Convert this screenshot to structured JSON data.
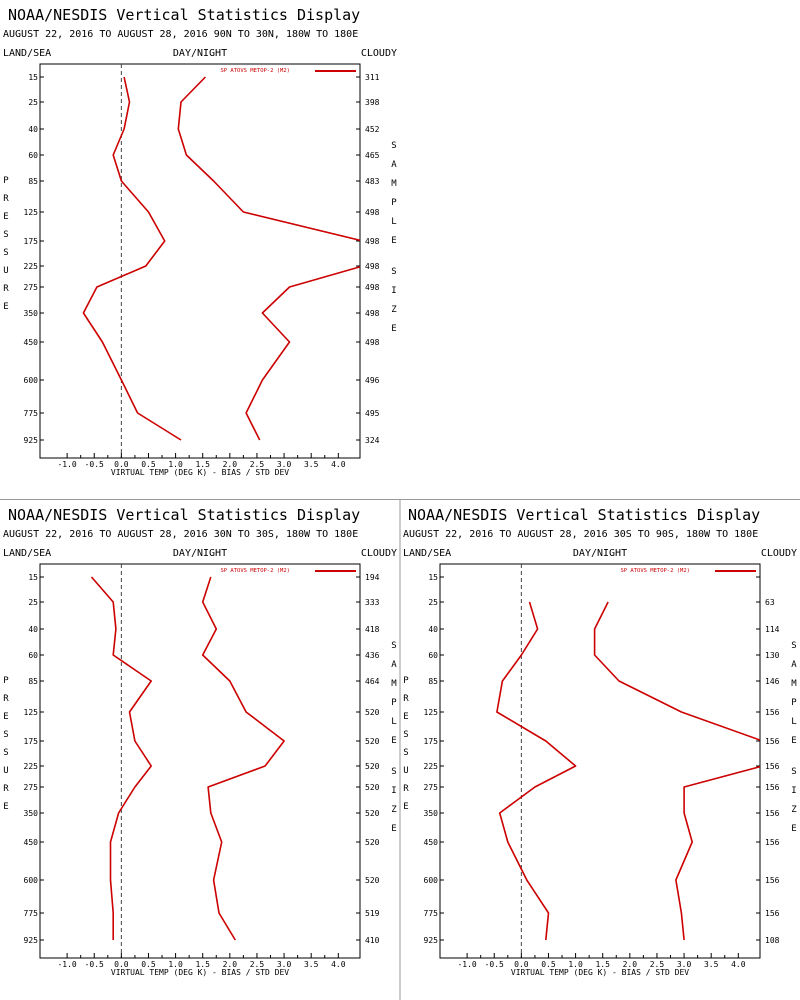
{
  "colors": {
    "series": "#cc0000",
    "frame": "#000000",
    "divider": "#999999",
    "zero_line": "#444444"
  },
  "labels": {
    "land_sea": "LAND/SEA",
    "day_night": "DAY/NIGHT",
    "cloudy": "CLOUDY",
    "y_axis_letters": "PRESSURE",
    "right_axis_top": "SAMPLE",
    "right_axis_bottom": "SIZE"
  },
  "chart_data": [
    {
      "type": "line",
      "title": "NOAA/NESDIS Vertical Statistics Display",
      "subtitle": "AUGUST 22, 2016 TO AUGUST 28, 2016 90N TO 30N, 180W TO 180E",
      "xlabel": "VIRTUAL TEMP (DEG K) - BIAS / STD DEV",
      "ylabel": "PRESSURE",
      "xlim": [
        -1.5,
        4.4
      ],
      "x_ticks": [
        "-1.0",
        "-0.5",
        "0.0",
        "0.5",
        "1.0",
        "1.5",
        "2.0",
        "2.5",
        "3.0",
        "3.5",
        "4.0"
      ],
      "pressure_levels": [
        "15",
        "25",
        "40",
        "60",
        "85",
        "125",
        "175",
        "225",
        "275",
        "350",
        "450",
        "600",
        "775",
        "925"
      ],
      "sample_size": [
        "311",
        "398",
        "452",
        "465",
        "483",
        "498",
        "498",
        "498",
        "498",
        "498",
        "498",
        "496",
        "495",
        "324"
      ],
      "legend": "SP ATOVS METOP-2 (M2)",
      "series": [
        {
          "role": "bias",
          "values": [
            0.05,
            0.15,
            0.05,
            -0.15,
            0.0,
            0.5,
            0.8,
            0.45,
            -0.45,
            -0.7,
            -0.35,
            0.0,
            0.3,
            1.1
          ]
        },
        {
          "role": "std_dev",
          "values": [
            1.55,
            1.1,
            1.05,
            1.2,
            1.7,
            2.25,
            4.45,
            4.45,
            3.1,
            2.6,
            3.1,
            2.6,
            2.3,
            2.55
          ]
        }
      ]
    },
    {
      "type": "line",
      "title": "NOAA/NESDIS Vertical Statistics Display",
      "subtitle": "AUGUST 22, 2016 TO AUGUST 28, 2016 30N TO 30S, 180W TO 180E",
      "xlabel": "VIRTUAL TEMP (DEG K) - BIAS / STD DEV",
      "ylabel": "PRESSURE",
      "xlim": [
        -1.5,
        4.4
      ],
      "x_ticks": [
        "-1.0",
        "-0.5",
        "0.0",
        "0.5",
        "1.0",
        "1.5",
        "2.0",
        "2.5",
        "3.0",
        "3.5",
        "4.0"
      ],
      "pressure_levels": [
        "15",
        "25",
        "40",
        "60",
        "85",
        "125",
        "175",
        "225",
        "275",
        "350",
        "450",
        "600",
        "775",
        "925"
      ],
      "sample_size": [
        "194",
        "333",
        "418",
        "436",
        "464",
        "520",
        "520",
        "520",
        "520",
        "520",
        "520",
        "520",
        "519",
        "410"
      ],
      "legend": "SP ATOVS METOP-2 (M2)",
      "series": [
        {
          "role": "bias",
          "values": [
            -0.55,
            -0.15,
            -0.1,
            -0.15,
            0.55,
            0.15,
            0.25,
            0.55,
            0.25,
            -0.05,
            -0.2,
            -0.2,
            -0.15,
            -0.15
          ]
        },
        {
          "role": "std_dev",
          "values": [
            1.65,
            1.5,
            1.75,
            1.5,
            2.0,
            2.3,
            3.0,
            2.65,
            1.6,
            1.65,
            1.85,
            1.7,
            1.8,
            2.1
          ]
        }
      ]
    },
    {
      "type": "line",
      "title": "NOAA/NESDIS Vertical Statistics Display",
      "subtitle": "AUGUST 22, 2016 TO AUGUST 28, 2016 30S TO 90S, 180W TO 180E",
      "xlabel": "VIRTUAL TEMP (DEG K) - BIAS / STD DEV",
      "ylabel": "PRESSURE",
      "xlim": [
        -1.5,
        4.4
      ],
      "x_ticks": [
        "-1.0",
        "-0.5",
        "0.0",
        "0.5",
        "1.0",
        "1.5",
        "2.0",
        "2.5",
        "3.0",
        "3.5",
        "4.0"
      ],
      "pressure_levels": [
        "15",
        "25",
        "40",
        "60",
        "85",
        "125",
        "175",
        "225",
        "275",
        "350",
        "450",
        "600",
        "775",
        "925"
      ],
      "sample_size": [
        "",
        "63",
        "114",
        "130",
        "146",
        "156",
        "156",
        "156",
        "156",
        "156",
        "156",
        "156",
        "156",
        "108"
      ],
      "legend": "SP ATOVS METOP-2 (M2)",
      "series": [
        {
          "role": "bias",
          "values": [
            null,
            0.15,
            0.3,
            0.0,
            -0.35,
            -0.45,
            0.45,
            1.0,
            0.25,
            -0.4,
            -0.25,
            0.1,
            0.5,
            0.45
          ]
        },
        {
          "role": "std_dev",
          "values": [
            null,
            1.6,
            1.35,
            1.35,
            1.8,
            2.95,
            4.45,
            4.45,
            3.0,
            3.0,
            3.15,
            2.85,
            2.95,
            3.0
          ]
        }
      ]
    }
  ]
}
